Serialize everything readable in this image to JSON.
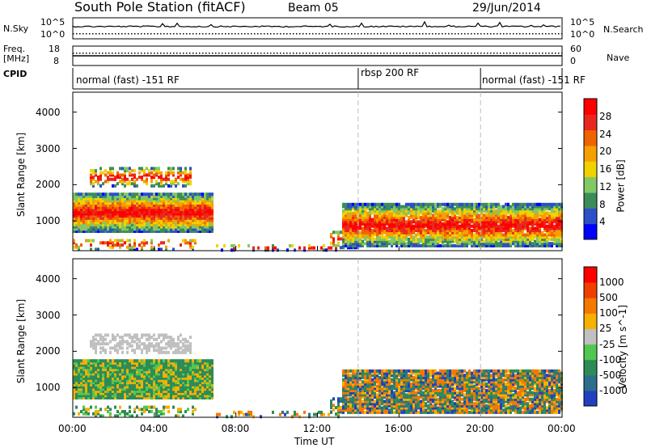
{
  "header": {
    "station": "South Pole Station (fitACF)",
    "beam": "Beam 05",
    "date": "29/Jun/2014"
  },
  "left_labels": {
    "nsky": "N.Sky",
    "freq": "Freq.",
    "freq_unit": "[MHz]",
    "cpid": "CPID"
  },
  "right_labels": {
    "nsearch": "N.Search",
    "nave": "Nave"
  },
  "noise_axis": {
    "left_top": "10^5",
    "left_bottom": "10^0",
    "right_top": "10^5",
    "right_bottom": "10^0"
  },
  "freq_axis": {
    "left_top": "18",
    "left_bottom": "8",
    "right_top": "60",
    "right_bottom": "0"
  },
  "cpid_segments": [
    {
      "label": "normal (fast) -151 RF",
      "start_h": 0,
      "end_h": 14
    },
    {
      "label": "rbsp 200 RF",
      "start_h": 14,
      "end_h": 20
    },
    {
      "label": "normal (fast) -151 RF",
      "start_h": 20,
      "end_h": 24
    }
  ],
  "xaxis": {
    "label": "Time UT",
    "ticks": [
      "00:00",
      "04:00",
      "08:00",
      "12:00",
      "16:00",
      "20:00",
      "00:00"
    ],
    "tick_hours": [
      0,
      4,
      8,
      12,
      16,
      20,
      24
    ]
  },
  "colors": {
    "power": [
      "#0000ff",
      "#2d4fc8",
      "#3c8c5a",
      "#82c864",
      "#f0d200",
      "#f5a000",
      "#f06400",
      "#e82820",
      "#ff0000"
    ],
    "velocity": [
      "#ff0000",
      "#f04000",
      "#f57800",
      "#f5b000",
      "#c0c0c0",
      "#50c850",
      "#2e8b57",
      "#2d6e8c",
      "#2040c0"
    ]
  },
  "chart_data": [
    {
      "type": "heatmap",
      "name": "power",
      "ylabel": "Slant Range [km]",
      "yticks": [
        1000,
        2000,
        3000,
        4000
      ],
      "ylim": [
        180,
        4550
      ],
      "xlim": [
        0,
        24
      ],
      "colorbar": {
        "label": "Power [dB]",
        "ticks": [
          "4",
          "8",
          "12",
          "16",
          "20",
          "24",
          "28"
        ],
        "range": [
          0,
          30
        ]
      }
    },
    {
      "type": "heatmap",
      "name": "velocity",
      "ylabel": "Slant Range [km]",
      "yticks": [
        1000,
        2000,
        3000,
        4000
      ],
      "ylim": [
        180,
        4550
      ],
      "xlim": [
        0,
        24
      ],
      "colorbar": {
        "label": "Velocity [m s^-1]",
        "ticks": [
          "1000",
          "500",
          "100",
          "25",
          "-25",
          "-100",
          "-500",
          "-1000"
        ]
      }
    }
  ]
}
